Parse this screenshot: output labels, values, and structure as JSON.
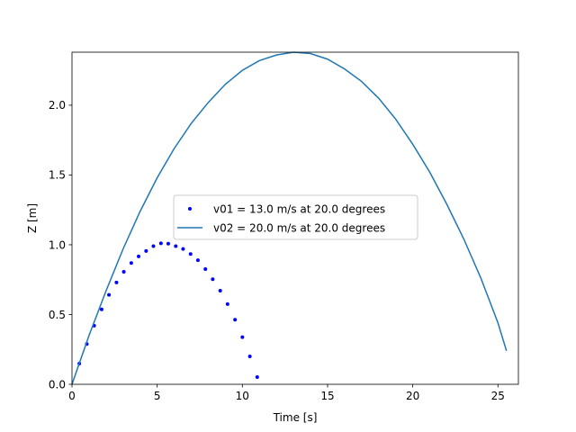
{
  "chart_data": {
    "type": "line",
    "title": "",
    "xlabel": "Time [s]",
    "ylabel": "Z [m]",
    "xlim": [
      0,
      26.2
    ],
    "ylim": [
      0,
      2.38
    ],
    "xticks": [
      0,
      5,
      10,
      15,
      20,
      25
    ],
    "yticks": [
      0.0,
      0.5,
      1.0,
      1.5,
      2.0
    ],
    "xtick_labels": [
      "0",
      "5",
      "10",
      "15",
      "20",
      "25"
    ],
    "ytick_labels": [
      "0.0",
      "0.5",
      "1.0",
      "1.5",
      "2.0"
    ],
    "grid": false,
    "legend_position": "center",
    "series": [
      {
        "name": "v01 = 13.0 m/s at 20.0 degrees",
        "style": "dots",
        "color": "#0000ff",
        "x": [
          0.43,
          0.87,
          1.3,
          1.74,
          2.17,
          2.61,
          3.04,
          3.48,
          3.91,
          4.35,
          4.78,
          5.22,
          5.65,
          6.09,
          6.52,
          6.96,
          7.39,
          7.83,
          8.26,
          8.7,
          9.13,
          9.57,
          10.0,
          10.44,
          10.87
        ],
        "y": [
          0.148,
          0.289,
          0.42,
          0.537,
          0.641,
          0.73,
          0.806,
          0.869,
          0.917,
          0.955,
          0.99,
          1.01,
          1.008,
          0.99,
          0.97,
          0.934,
          0.889,
          0.826,
          0.753,
          0.671,
          0.575,
          0.463,
          0.338,
          0.2,
          0.052
        ]
      },
      {
        "name": "v02 = 20.0 m/s at 20.0 degrees",
        "style": "line",
        "color": "#1f77b4",
        "x": [
          0,
          1,
          2,
          3,
          4,
          5,
          6,
          7,
          8,
          9,
          10,
          11,
          12,
          13,
          14,
          15,
          16,
          17,
          18,
          19,
          20,
          21,
          22,
          23,
          24,
          25,
          25.5
        ],
        "y": [
          0.0,
          0.35,
          0.67,
          0.97,
          1.24,
          1.48,
          1.69,
          1.87,
          2.02,
          2.15,
          2.25,
          2.32,
          2.36,
          2.38,
          2.37,
          2.33,
          2.26,
          2.17,
          2.05,
          1.9,
          1.72,
          1.52,
          1.29,
          1.04,
          0.76,
          0.44,
          0.24
        ]
      }
    ]
  }
}
